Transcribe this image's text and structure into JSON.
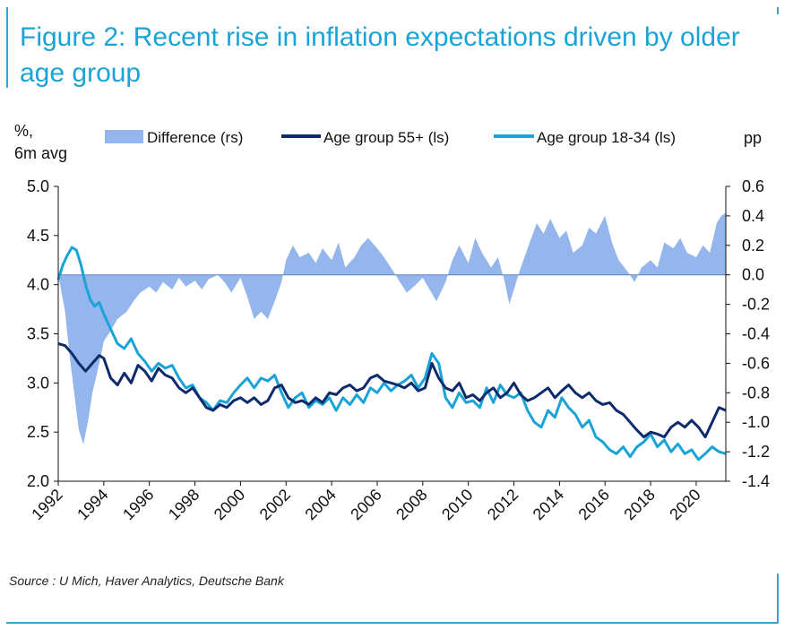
{
  "title": "Figure 2: Recent rise in inflation expectations driven by older age group",
  "source": "Source : U Mich, Haver Analytics, Deutsche Bank",
  "chart_data": {
    "type": "line",
    "left_unit": "%,",
    "left_unit2": "6m avg",
    "right_unit": "pp",
    "ylim_left": [
      2.0,
      5.0
    ],
    "ylim_right": [
      -1.4,
      0.6
    ],
    "xlim": [
      1992,
      2021.3
    ],
    "left_ticks": [
      "5.0",
      "4.5",
      "4.0",
      "3.5",
      "3.0",
      "2.5",
      "2.0"
    ],
    "left_tick_values": [
      5.0,
      4.5,
      4.0,
      3.5,
      3.0,
      2.5,
      2.0
    ],
    "right_ticks": [
      "0.6",
      "0.4",
      "0.2",
      "0.0",
      "-0.2",
      "-0.4",
      "-0.6",
      "-0.8",
      "-1.0",
      "-1.2",
      "-1.4"
    ],
    "right_tick_values": [
      0.6,
      0.4,
      0.2,
      0.0,
      -0.2,
      -0.4,
      -0.6,
      -0.8,
      -1.0,
      -1.2,
      -1.4
    ],
    "x_ticks": [
      "1992",
      "1994",
      "1996",
      "1998",
      "2000",
      "2002",
      "2004",
      "2006",
      "2008",
      "2010",
      "2012",
      "2014",
      "2016",
      "2018",
      "2020"
    ],
    "x_tick_values": [
      1992,
      1994,
      1996,
      1998,
      2000,
      2002,
      2004,
      2006,
      2008,
      2010,
      2012,
      2014,
      2016,
      2018,
      2020
    ],
    "legend": [
      "Difference (rs)",
      "Age group 55+ (ls)",
      "Age group 18-34 (ls)"
    ],
    "colors": {
      "difference": "#94b6ec",
      "age55": "#0d2b6b",
      "age1834": "#1aa3d6"
    },
    "series": [
      {
        "name": "Difference (rs)",
        "axis": "right",
        "style": "area",
        "x": [
          1992.0,
          1992.3,
          1992.5,
          1992.7,
          1992.9,
          1993.1,
          1993.3,
          1993.5,
          1993.8,
          1994.0,
          1994.3,
          1994.6,
          1995.0,
          1995.3,
          1995.6,
          1996.0,
          1996.3,
          1996.6,
          1997.0,
          1997.3,
          1997.6,
          1998.0,
          1998.3,
          1998.6,
          1999.0,
          1999.3,
          1999.6,
          2000.0,
          2000.3,
          2000.6,
          2000.9,
          2001.2,
          2001.5,
          2001.8,
          2002.0,
          2002.3,
          2002.6,
          2003.0,
          2003.3,
          2003.6,
          2004.0,
          2004.3,
          2004.6,
          2005.0,
          2005.3,
          2005.6,
          2006.0,
          2006.3,
          2006.6,
          2007.0,
          2007.3,
          2007.6,
          2008.0,
          2008.3,
          2008.6,
          2009.0,
          2009.3,
          2009.6,
          2010.0,
          2010.3,
          2010.6,
          2011.0,
          2011.3,
          2011.6,
          2011.8,
          2012.0,
          2012.3,
          2012.6,
          2013.0,
          2013.3,
          2013.6,
          2014.0,
          2014.3,
          2014.6,
          2015.0,
          2015.3,
          2015.6,
          2016.0,
          2016.3,
          2016.6,
          2017.0,
          2017.3,
          2017.6,
          2018.0,
          2018.3,
          2018.6,
          2019.0,
          2019.3,
          2019.6,
          2020.0,
          2020.3,
          2020.6,
          2020.9,
          2021.1,
          2021.3
        ],
        "values": [
          0.0,
          -0.25,
          -0.55,
          -0.8,
          -1.05,
          -1.15,
          -1.0,
          -0.8,
          -0.6,
          -0.45,
          -0.38,
          -0.3,
          -0.25,
          -0.18,
          -0.12,
          -0.08,
          -0.12,
          -0.05,
          -0.1,
          -0.02,
          -0.08,
          -0.04,
          -0.1,
          -0.03,
          0.0,
          -0.05,
          -0.12,
          -0.02,
          -0.15,
          -0.3,
          -0.25,
          -0.3,
          -0.18,
          -0.05,
          0.1,
          0.2,
          0.12,
          0.15,
          0.08,
          0.18,
          0.1,
          0.22,
          0.05,
          0.12,
          0.2,
          0.25,
          0.18,
          0.12,
          0.05,
          -0.05,
          -0.12,
          -0.08,
          -0.02,
          -0.1,
          -0.18,
          -0.05,
          0.1,
          0.2,
          0.08,
          0.25,
          0.15,
          0.05,
          0.12,
          -0.05,
          -0.2,
          -0.1,
          0.05,
          0.18,
          0.35,
          0.28,
          0.38,
          0.25,
          0.3,
          0.15,
          0.2,
          0.32,
          0.28,
          0.4,
          0.22,
          0.1,
          0.02,
          -0.05,
          0.05,
          0.1,
          0.05,
          0.22,
          0.18,
          0.25,
          0.15,
          0.12,
          0.2,
          0.15,
          0.35,
          0.4,
          0.42
        ]
      },
      {
        "name": "Age group 55+ (ls)",
        "axis": "left",
        "style": "line",
        "x": [
          1992.0,
          1992.3,
          1992.6,
          1992.9,
          1993.2,
          1993.5,
          1993.8,
          1994.0,
          1994.3,
          1994.6,
          1994.9,
          1995.2,
          1995.5,
          1995.8,
          1996.1,
          1996.4,
          1996.7,
          1997.0,
          1997.3,
          1997.6,
          1997.9,
          1998.2,
          1998.5,
          1998.8,
          1999.1,
          1999.4,
          1999.7,
          2000.0,
          2000.3,
          2000.6,
          2000.9,
          2001.2,
          2001.5,
          2001.8,
          2002.1,
          2002.4,
          2002.7,
          2003.0,
          2003.3,
          2003.6,
          2003.9,
          2004.2,
          2004.5,
          2004.8,
          2005.1,
          2005.4,
          2005.7,
          2006.0,
          2006.3,
          2006.6,
          2006.9,
          2007.2,
          2007.5,
          2007.8,
          2008.1,
          2008.4,
          2008.7,
          2009.0,
          2009.3,
          2009.6,
          2009.9,
          2010.2,
          2010.5,
          2010.8,
          2011.1,
          2011.4,
          2011.7,
          2012.0,
          2012.3,
          2012.6,
          2012.9,
          2013.2,
          2013.5,
          2013.8,
          2014.1,
          2014.4,
          2014.7,
          2015.0,
          2015.3,
          2015.6,
          2015.9,
          2016.2,
          2016.5,
          2016.8,
          2017.1,
          2017.4,
          2017.7,
          2018.0,
          2018.3,
          2018.6,
          2018.9,
          2019.2,
          2019.5,
          2019.8,
          2020.1,
          2020.4,
          2020.7,
          2021.0,
          2021.3
        ],
        "values": [
          3.4,
          3.38,
          3.3,
          3.2,
          3.12,
          3.2,
          3.28,
          3.25,
          3.05,
          2.98,
          3.1,
          3.0,
          3.18,
          3.12,
          3.02,
          3.15,
          3.08,
          3.05,
          2.95,
          2.9,
          2.95,
          2.85,
          2.75,
          2.72,
          2.78,
          2.75,
          2.82,
          2.85,
          2.8,
          2.85,
          2.78,
          2.82,
          2.95,
          2.98,
          2.85,
          2.8,
          2.82,
          2.78,
          2.85,
          2.8,
          2.9,
          2.88,
          2.95,
          2.98,
          2.92,
          2.95,
          3.05,
          3.08,
          3.02,
          3.0,
          2.98,
          2.95,
          3.0,
          2.92,
          2.95,
          3.2,
          3.05,
          2.95,
          2.92,
          3.0,
          2.85,
          2.88,
          2.82,
          2.9,
          2.95,
          2.85,
          2.9,
          3.0,
          2.88,
          2.82,
          2.85,
          2.9,
          2.95,
          2.85,
          2.92,
          2.98,
          2.9,
          2.85,
          2.9,
          2.82,
          2.78,
          2.8,
          2.72,
          2.68,
          2.6,
          2.52,
          2.45,
          2.5,
          2.48,
          2.45,
          2.55,
          2.6,
          2.55,
          2.62,
          2.55,
          2.45,
          2.6,
          2.75,
          2.72
        ]
      },
      {
        "name": "Age group 18-34 (ls)",
        "axis": "left",
        "style": "line",
        "x": [
          1992.0,
          1992.2,
          1992.4,
          1992.6,
          1992.8,
          1993.0,
          1993.2,
          1993.4,
          1993.6,
          1993.8,
          1994.0,
          1994.2,
          1994.4,
          1994.6,
          1994.9,
          1995.2,
          1995.5,
          1995.8,
          1996.1,
          1996.4,
          1996.7,
          1997.0,
          1997.3,
          1997.6,
          1997.9,
          1998.2,
          1998.5,
          1998.8,
          1999.1,
          1999.4,
          1999.7,
          2000.0,
          2000.3,
          2000.6,
          2000.9,
          2001.2,
          2001.5,
          2001.8,
          2002.1,
          2002.4,
          2002.7,
          2003.0,
          2003.3,
          2003.6,
          2003.9,
          2004.2,
          2004.5,
          2004.8,
          2005.1,
          2005.4,
          2005.7,
          2006.0,
          2006.3,
          2006.6,
          2006.9,
          2007.2,
          2007.5,
          2007.8,
          2008.1,
          2008.4,
          2008.7,
          2009.0,
          2009.3,
          2009.6,
          2009.9,
          2010.2,
          2010.5,
          2010.8,
          2011.1,
          2011.4,
          2011.7,
          2012.0,
          2012.3,
          2012.6,
          2012.9,
          2013.2,
          2013.5,
          2013.8,
          2014.1,
          2014.4,
          2014.7,
          2015.0,
          2015.3,
          2015.6,
          2015.9,
          2016.2,
          2016.5,
          2016.8,
          2017.1,
          2017.4,
          2017.7,
          2018.0,
          2018.3,
          2018.6,
          2018.9,
          2019.2,
          2019.5,
          2019.8,
          2020.1,
          2020.4,
          2020.7,
          2021.0,
          2021.3
        ],
        "values": [
          4.05,
          4.2,
          4.3,
          4.38,
          4.35,
          4.2,
          4.0,
          3.85,
          3.78,
          3.82,
          3.7,
          3.6,
          3.5,
          3.4,
          3.35,
          3.45,
          3.3,
          3.22,
          3.12,
          3.2,
          3.15,
          3.18,
          3.05,
          2.95,
          2.98,
          2.85,
          2.8,
          2.72,
          2.82,
          2.8,
          2.9,
          2.98,
          3.05,
          2.95,
          3.05,
          3.02,
          3.08,
          2.9,
          2.75,
          2.85,
          2.9,
          2.75,
          2.82,
          2.78,
          2.85,
          2.72,
          2.85,
          2.78,
          2.88,
          2.8,
          2.95,
          2.9,
          3.0,
          2.92,
          2.98,
          3.02,
          3.08,
          2.95,
          3.05,
          3.3,
          3.2,
          2.85,
          2.75,
          2.9,
          2.8,
          2.82,
          2.75,
          2.95,
          2.8,
          2.98,
          2.88,
          2.85,
          2.9,
          2.72,
          2.6,
          2.55,
          2.72,
          2.65,
          2.85,
          2.75,
          2.68,
          2.55,
          2.62,
          2.45,
          2.4,
          2.32,
          2.28,
          2.35,
          2.25,
          2.35,
          2.4,
          2.48,
          2.35,
          2.42,
          2.3,
          2.38,
          2.28,
          2.32,
          2.22,
          2.28,
          2.35,
          2.3,
          2.28
        ]
      }
    ]
  }
}
